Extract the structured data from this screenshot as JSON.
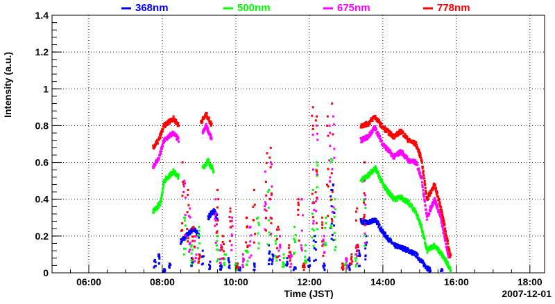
{
  "chart_data": {
    "type": "scatter",
    "title": "",
    "xlabel": "Time (JST)",
    "ylabel": "Intensity (a.u.)",
    "date_label": "2007-12-01",
    "xlim_hours": [
      5.0,
      18.4
    ],
    "ylim": [
      0,
      1.4
    ],
    "grid": true,
    "legend_placement": "top",
    "x_ticks": [
      {
        "t": 6,
        "label": "06:00"
      },
      {
        "t": 8,
        "label": "08:00"
      },
      {
        "t": 10,
        "label": "10:00"
      },
      {
        "t": 12,
        "label": "12:00"
      },
      {
        "t": 14,
        "label": "14:00"
      },
      {
        "t": 16,
        "label": "16:00"
      },
      {
        "t": 18,
        "label": "18:00"
      }
    ],
    "y_ticks": [
      {
        "v": 0,
        "label": "0"
      },
      {
        "v": 0.2,
        "label": "0.2"
      },
      {
        "v": 0.4,
        "label": "0.4"
      },
      {
        "v": 0.6,
        "label": "0.6"
      },
      {
        "v": 0.8,
        "label": "0.8"
      },
      {
        "v": 1.0,
        "label": "1"
      },
      {
        "v": 1.2,
        "label": "1.2"
      },
      {
        "v": 1.4,
        "label": "1.4"
      }
    ],
    "series": [
      {
        "name": "368nm",
        "color": "#0000ff",
        "segments": [
          [
            [
              8.5,
              0.17
            ],
            [
              8.7,
              0.21
            ],
            [
              8.85,
              0.24
            ],
            [
              9.0,
              0.2
            ]
          ],
          [
            [
              9.25,
              0.3
            ],
            [
              9.4,
              0.34
            ],
            [
              9.5,
              0.3
            ]
          ],
          [
            [
              13.4,
              0.28
            ],
            [
              13.6,
              0.27
            ],
            [
              13.8,
              0.29
            ],
            [
              14.0,
              0.22
            ],
            [
              14.3,
              0.15
            ],
            [
              14.6,
              0.13
            ],
            [
              14.9,
              0.1
            ],
            [
              15.1,
              0.05
            ],
            [
              15.3,
              0.01
            ]
          ]
        ],
        "scatter": [
          [
            7.8,
            0.07
          ],
          [
            7.9,
            0.1
          ],
          [
            8.05,
            0.02
          ],
          [
            8.2,
            0.05
          ],
          [
            8.8,
            0.08
          ],
          [
            9.1,
            0.12
          ],
          [
            9.3,
            0.06
          ],
          [
            9.6,
            0.04
          ],
          [
            9.8,
            0.08
          ],
          [
            10.1,
            0.03
          ],
          [
            10.5,
            0.05
          ],
          [
            10.9,
            0.15
          ],
          [
            11.0,
            0.1
          ],
          [
            11.4,
            0.08
          ],
          [
            11.6,
            0.03
          ],
          [
            12.0,
            0.08
          ],
          [
            12.15,
            0.2
          ],
          [
            12.4,
            0.05
          ],
          [
            12.6,
            0.45
          ],
          [
            12.65,
            0.48
          ],
          [
            13.1,
            0.05
          ],
          [
            13.35,
            0.12
          ],
          [
            13.55,
            0.2
          ],
          [
            15.6,
            0.02
          ]
        ]
      },
      {
        "name": "500nm",
        "color": "#00ff00",
        "segments": [
          [
            [
              7.75,
              0.33
            ],
            [
              7.95,
              0.38
            ],
            [
              8.05,
              0.5
            ],
            [
              8.3,
              0.55
            ],
            [
              8.45,
              0.52
            ]
          ],
          [
            [
              9.1,
              0.57
            ],
            [
              9.25,
              0.61
            ],
            [
              9.4,
              0.55
            ]
          ],
          [
            [
              13.4,
              0.5
            ],
            [
              13.6,
              0.53
            ],
            [
              13.8,
              0.57
            ],
            [
              14.0,
              0.48
            ],
            [
              14.3,
              0.4
            ],
            [
              14.5,
              0.41
            ],
            [
              14.7,
              0.38
            ],
            [
              14.9,
              0.33
            ],
            [
              15.05,
              0.25
            ],
            [
              15.2,
              0.12
            ],
            [
              15.4,
              0.15
            ],
            [
              15.6,
              0.1
            ],
            [
              15.85,
              0.02
            ]
          ]
        ],
        "scatter": [
          [
            8.6,
            0.3
          ],
          [
            8.8,
            0.15
          ],
          [
            9.0,
            0.25
          ],
          [
            9.5,
            0.2
          ],
          [
            9.7,
            0.1
          ],
          [
            10.0,
            0.05
          ],
          [
            10.3,
            0.12
          ],
          [
            10.6,
            0.3
          ],
          [
            10.9,
            0.45
          ],
          [
            11.1,
            0.2
          ],
          [
            11.3,
            0.1
          ],
          [
            11.6,
            0.25
          ],
          [
            11.9,
            0.15
          ],
          [
            12.1,
            0.45
          ],
          [
            12.2,
            0.6
          ],
          [
            12.45,
            0.3
          ],
          [
            12.6,
            0.62
          ],
          [
            12.7,
            0.4
          ],
          [
            13.0,
            0.05
          ],
          [
            13.25,
            0.1
          ],
          [
            13.5,
            0.4
          ]
        ]
      },
      {
        "name": "675nm",
        "color": "#ff00ff",
        "segments": [
          [
            [
              7.75,
              0.58
            ],
            [
              7.9,
              0.62
            ],
            [
              8.05,
              0.72
            ],
            [
              8.3,
              0.76
            ],
            [
              8.45,
              0.72
            ]
          ],
          [
            [
              9.1,
              0.76
            ],
            [
              9.2,
              0.8
            ],
            [
              9.35,
              0.72
            ]
          ],
          [
            [
              13.4,
              0.72
            ],
            [
              13.6,
              0.74
            ],
            [
              13.78,
              0.79
            ],
            [
              14.0,
              0.7
            ],
            [
              14.3,
              0.63
            ],
            [
              14.5,
              0.66
            ],
            [
              14.7,
              0.61
            ],
            [
              14.9,
              0.6
            ],
            [
              15.05,
              0.52
            ],
            [
              15.2,
              0.3
            ],
            [
              15.4,
              0.4
            ],
            [
              15.55,
              0.32
            ],
            [
              15.8,
              0.08
            ]
          ]
        ],
        "scatter": [
          [
            8.6,
            0.5
          ],
          [
            8.75,
            0.35
          ],
          [
            8.9,
            0.2
          ],
          [
            9.45,
            0.4
          ],
          [
            9.6,
            0.15
          ],
          [
            9.9,
            0.3
          ],
          [
            10.2,
            0.1
          ],
          [
            10.4,
            0.25
          ],
          [
            10.8,
            0.55
          ],
          [
            10.95,
            0.6
          ],
          [
            11.2,
            0.2
          ],
          [
            11.5,
            0.1
          ],
          [
            11.8,
            0.4
          ],
          [
            12.1,
            0.75
          ],
          [
            12.2,
            0.8
          ],
          [
            12.4,
            0.2
          ],
          [
            12.55,
            0.8
          ],
          [
            12.65,
            0.85
          ],
          [
            13.0,
            0.08
          ],
          [
            13.3,
            0.15
          ],
          [
            13.5,
            0.5
          ]
        ]
      },
      {
        "name": "778nm",
        "color": "#ff0000",
        "segments": [
          [
            [
              7.75,
              0.68
            ],
            [
              7.9,
              0.72
            ],
            [
              8.05,
              0.8
            ],
            [
              8.3,
              0.84
            ],
            [
              8.45,
              0.8
            ]
          ],
          [
            [
              9.05,
              0.82
            ],
            [
              9.2,
              0.86
            ],
            [
              9.35,
              0.8
            ]
          ],
          [
            [
              13.4,
              0.8
            ],
            [
              13.6,
              0.81
            ],
            [
              13.78,
              0.85
            ],
            [
              14.0,
              0.79
            ],
            [
              14.3,
              0.74
            ],
            [
              14.5,
              0.77
            ],
            [
              14.7,
              0.72
            ],
            [
              14.9,
              0.7
            ],
            [
              15.05,
              0.62
            ],
            [
              15.2,
              0.4
            ],
            [
              15.4,
              0.48
            ],
            [
              15.55,
              0.38
            ],
            [
              15.85,
              0.08
            ]
          ]
        ],
        "scatter": [
          [
            8.55,
            0.6
          ],
          [
            8.7,
            0.45
          ],
          [
            8.85,
            0.25
          ],
          [
            9.0,
            0.1
          ],
          [
            9.5,
            0.45
          ],
          [
            9.65,
            0.2
          ],
          [
            9.85,
            0.35
          ],
          [
            10.05,
            0.05
          ],
          [
            10.3,
            0.3
          ],
          [
            10.5,
            0.45
          ],
          [
            10.85,
            0.65
          ],
          [
            10.95,
            0.68
          ],
          [
            11.15,
            0.25
          ],
          [
            11.45,
            0.15
          ],
          [
            11.7,
            0.4
          ],
          [
            11.85,
            0.05
          ],
          [
            12.1,
            0.9
          ],
          [
            12.2,
            0.85
          ],
          [
            12.35,
            0.3
          ],
          [
            12.5,
            0.85
          ],
          [
            12.62,
            0.92
          ],
          [
            12.9,
            0.05
          ],
          [
            13.15,
            0.1
          ],
          [
            13.3,
            0.35
          ],
          [
            13.5,
            0.6
          ]
        ]
      }
    ]
  }
}
